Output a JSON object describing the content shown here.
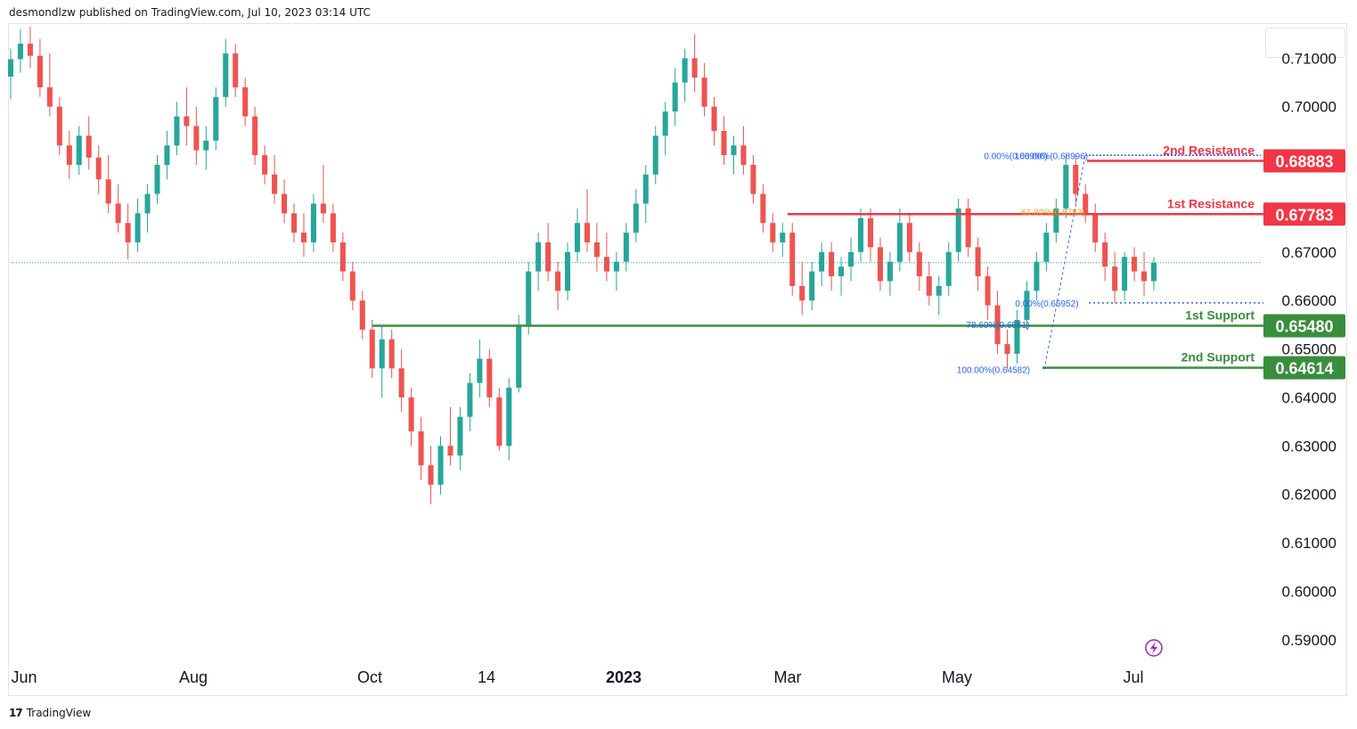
{
  "header": {
    "published_text": "desmondlzw published on TradingView.com, Jul 10, 2023 03:14 UTC"
  },
  "footer": {
    "brand": "TradingView",
    "logo_icon": "tradingview-logo-icon"
  },
  "colors": {
    "up": "#26a69a",
    "down": "#ef5350",
    "resistance": "#f23645",
    "support": "#388e3c",
    "fib": "#2962ff",
    "fib_orange": "#f0a020",
    "axis_text": "#131722",
    "last_price_line": "#26a69a"
  },
  "chart_data": {
    "type": "candlestick",
    "title": "",
    "xlabel": "",
    "ylabel": "",
    "ylim": [
      0.585,
      0.7165
    ],
    "grid": false,
    "y_ticks": [
      "0.71000",
      "0.70000",
      "0.67000",
      "0.66000",
      "0.65000",
      "0.64000",
      "0.63000",
      "0.62000",
      "0.61000",
      "0.60000",
      "0.59000"
    ],
    "x_ticks": [
      "Jun",
      "Aug",
      "Oct",
      "14",
      "2023",
      "Mar",
      "May",
      "Jul"
    ],
    "last_price": 0.6678,
    "levels": [
      {
        "label": "2nd Resistance",
        "value": "0.68883",
        "kind": "resistance"
      },
      {
        "label": "1st Resistance",
        "value": "0.67783",
        "kind": "resistance"
      },
      {
        "label": "1st Support",
        "value": "0.65480",
        "kind": "support"
      },
      {
        "label": "2nd Support",
        "value": "0.64614",
        "kind": "support"
      }
    ],
    "fib_upper": [
      {
        "label": "0.00%(0.68996)",
        "value": 0.68996
      },
      {
        "label": "100.00%(0.68996)",
        "value": 0.68996
      },
      {
        "label": "61.80%(0.6783)",
        "value": 0.6783
      }
    ],
    "fib_lower": [
      {
        "label": "0.00%(0.65952)",
        "value": 0.65952
      },
      {
        "label": "78.60%(0.6551)",
        "value": 0.6551
      },
      {
        "label": "100.00%(0.64582)",
        "value": 0.64582
      }
    ],
    "candles": [
      [
        0.7062,
        0.712,
        0.7015,
        0.7098
      ],
      [
        0.7098,
        0.716,
        0.707,
        0.713
      ],
      [
        0.713,
        0.7165,
        0.708,
        0.7105
      ],
      [
        0.7105,
        0.714,
        0.702,
        0.704
      ],
      [
        0.704,
        0.711,
        0.698,
        0.7
      ],
      [
        0.7,
        0.702,
        0.69,
        0.692
      ],
      [
        0.692,
        0.695,
        0.685,
        0.688
      ],
      [
        0.688,
        0.696,
        0.686,
        0.694
      ],
      [
        0.694,
        0.698,
        0.687,
        0.6895
      ],
      [
        0.6895,
        0.692,
        0.682,
        0.685
      ],
      [
        0.685,
        0.69,
        0.678,
        0.68
      ],
      [
        0.68,
        0.684,
        0.674,
        0.676
      ],
      [
        0.676,
        0.68,
        0.6685,
        0.672
      ],
      [
        0.672,
        0.681,
        0.67,
        0.678
      ],
      [
        0.678,
        0.684,
        0.674,
        0.682
      ],
      [
        0.682,
        0.69,
        0.68,
        0.688
      ],
      [
        0.688,
        0.695,
        0.685,
        0.692
      ],
      [
        0.692,
        0.701,
        0.69,
        0.698
      ],
      [
        0.698,
        0.704,
        0.692,
        0.696
      ],
      [
        0.696,
        0.7,
        0.688,
        0.691
      ],
      [
        0.691,
        0.696,
        0.687,
        0.693
      ],
      [
        0.693,
        0.704,
        0.691,
        0.702
      ],
      [
        0.702,
        0.714,
        0.7,
        0.711
      ],
      [
        0.711,
        0.713,
        0.702,
        0.704
      ],
      [
        0.704,
        0.706,
        0.696,
        0.698
      ],
      [
        0.698,
        0.7,
        0.688,
        0.69
      ],
      [
        0.69,
        0.692,
        0.684,
        0.686
      ],
      [
        0.686,
        0.69,
        0.68,
        0.682
      ],
      [
        0.682,
        0.685,
        0.676,
        0.678
      ],
      [
        0.678,
        0.68,
        0.672,
        0.674
      ],
      [
        0.674,
        0.678,
        0.669,
        0.672
      ],
      [
        0.672,
        0.682,
        0.67,
        0.68
      ],
      [
        0.68,
        0.688,
        0.676,
        0.678
      ],
      [
        0.678,
        0.68,
        0.67,
        0.672
      ],
      [
        0.672,
        0.674,
        0.664,
        0.666
      ],
      [
        0.666,
        0.668,
        0.658,
        0.66
      ],
      [
        0.66,
        0.662,
        0.652,
        0.654
      ],
      [
        0.654,
        0.656,
        0.644,
        0.646
      ],
      [
        0.646,
        0.655,
        0.64,
        0.652
      ],
      [
        0.652,
        0.654,
        0.644,
        0.646
      ],
      [
        0.646,
        0.65,
        0.637,
        0.64
      ],
      [
        0.64,
        0.642,
        0.63,
        0.633
      ],
      [
        0.633,
        0.636,
        0.623,
        0.626
      ],
      [
        0.626,
        0.63,
        0.618,
        0.622
      ],
      [
        0.622,
        0.632,
        0.62,
        0.63
      ],
      [
        0.63,
        0.638,
        0.626,
        0.628
      ],
      [
        0.628,
        0.638,
        0.625,
        0.636
      ],
      [
        0.636,
        0.645,
        0.633,
        0.643
      ],
      [
        0.643,
        0.652,
        0.64,
        0.648
      ],
      [
        0.648,
        0.65,
        0.638,
        0.64
      ],
      [
        0.64,
        0.642,
        0.629,
        0.63
      ],
      [
        0.63,
        0.644,
        0.627,
        0.642
      ],
      [
        0.642,
        0.657,
        0.641,
        0.655
      ],
      [
        0.655,
        0.668,
        0.653,
        0.666
      ],
      [
        0.666,
        0.674,
        0.662,
        0.672
      ],
      [
        0.672,
        0.676,
        0.664,
        0.666
      ],
      [
        0.666,
        0.668,
        0.658,
        0.662
      ],
      [
        0.662,
        0.672,
        0.66,
        0.67
      ],
      [
        0.67,
        0.679,
        0.668,
        0.676
      ],
      [
        0.676,
        0.683,
        0.67,
        0.672
      ],
      [
        0.672,
        0.676,
        0.666,
        0.669
      ],
      [
        0.669,
        0.674,
        0.664,
        0.666
      ],
      [
        0.666,
        0.67,
        0.662,
        0.668
      ],
      [
        0.668,
        0.676,
        0.666,
        0.674
      ],
      [
        0.674,
        0.683,
        0.672,
        0.68
      ],
      [
        0.68,
        0.688,
        0.676,
        0.686
      ],
      [
        0.686,
        0.696,
        0.684,
        0.694
      ],
      [
        0.694,
        0.701,
        0.69,
        0.699
      ],
      [
        0.699,
        0.708,
        0.696,
        0.705
      ],
      [
        0.705,
        0.712,
        0.701,
        0.71
      ],
      [
        0.71,
        0.715,
        0.703,
        0.706
      ],
      [
        0.706,
        0.709,
        0.698,
        0.7
      ],
      [
        0.7,
        0.702,
        0.692,
        0.695
      ],
      [
        0.695,
        0.698,
        0.688,
        0.69
      ],
      [
        0.69,
        0.694,
        0.686,
        0.692
      ],
      [
        0.692,
        0.696,
        0.686,
        0.688
      ],
      [
        0.688,
        0.69,
        0.68,
        0.682
      ],
      [
        0.682,
        0.684,
        0.674,
        0.676
      ],
      [
        0.676,
        0.678,
        0.67,
        0.672
      ],
      [
        0.672,
        0.676,
        0.669,
        0.674
      ],
      [
        0.674,
        0.676,
        0.661,
        0.663
      ],
      [
        0.663,
        0.668,
        0.657,
        0.66
      ],
      [
        0.66,
        0.668,
        0.658,
        0.666
      ],
      [
        0.666,
        0.672,
        0.663,
        0.67
      ],
      [
        0.67,
        0.672,
        0.662,
        0.665
      ],
      [
        0.665,
        0.669,
        0.661,
        0.667
      ],
      [
        0.667,
        0.673,
        0.664,
        0.67
      ],
      [
        0.67,
        0.679,
        0.668,
        0.677
      ],
      [
        0.677,
        0.679,
        0.668,
        0.671
      ],
      [
        0.671,
        0.673,
        0.662,
        0.664
      ],
      [
        0.664,
        0.67,
        0.661,
        0.668
      ],
      [
        0.668,
        0.679,
        0.666,
        0.676
      ],
      [
        0.676,
        0.678,
        0.668,
        0.67
      ],
      [
        0.67,
        0.672,
        0.662,
        0.665
      ],
      [
        0.665,
        0.668,
        0.659,
        0.661
      ],
      [
        0.661,
        0.665,
        0.657,
        0.663
      ],
      [
        0.663,
        0.672,
        0.661,
        0.67
      ],
      [
        0.67,
        0.681,
        0.668,
        0.679
      ],
      [
        0.679,
        0.681,
        0.669,
        0.671
      ],
      [
        0.671,
        0.673,
        0.662,
        0.665
      ],
      [
        0.665,
        0.667,
        0.656,
        0.659
      ],
      [
        0.659,
        0.662,
        0.649,
        0.651
      ],
      [
        0.651,
        0.654,
        0.6458,
        0.649
      ],
      [
        0.649,
        0.658,
        0.647,
        0.656
      ],
      [
        0.656,
        0.664,
        0.654,
        0.662
      ],
      [
        0.662,
        0.67,
        0.66,
        0.668
      ],
      [
        0.668,
        0.676,
        0.666,
        0.674
      ],
      [
        0.674,
        0.681,
        0.672,
        0.679
      ],
      [
        0.679,
        0.69,
        0.677,
        0.688
      ],
      [
        0.688,
        0.69,
        0.68,
        0.682
      ],
      [
        0.682,
        0.684,
        0.676,
        0.678
      ],
      [
        0.678,
        0.68,
        0.67,
        0.672
      ],
      [
        0.672,
        0.674,
        0.664,
        0.667
      ],
      [
        0.667,
        0.67,
        0.6595,
        0.662
      ],
      [
        0.662,
        0.67,
        0.66,
        0.669
      ],
      [
        0.669,
        0.671,
        0.664,
        0.666
      ],
      [
        0.666,
        0.67,
        0.661,
        0.664
      ],
      [
        0.664,
        0.669,
        0.662,
        0.6678
      ]
    ]
  }
}
